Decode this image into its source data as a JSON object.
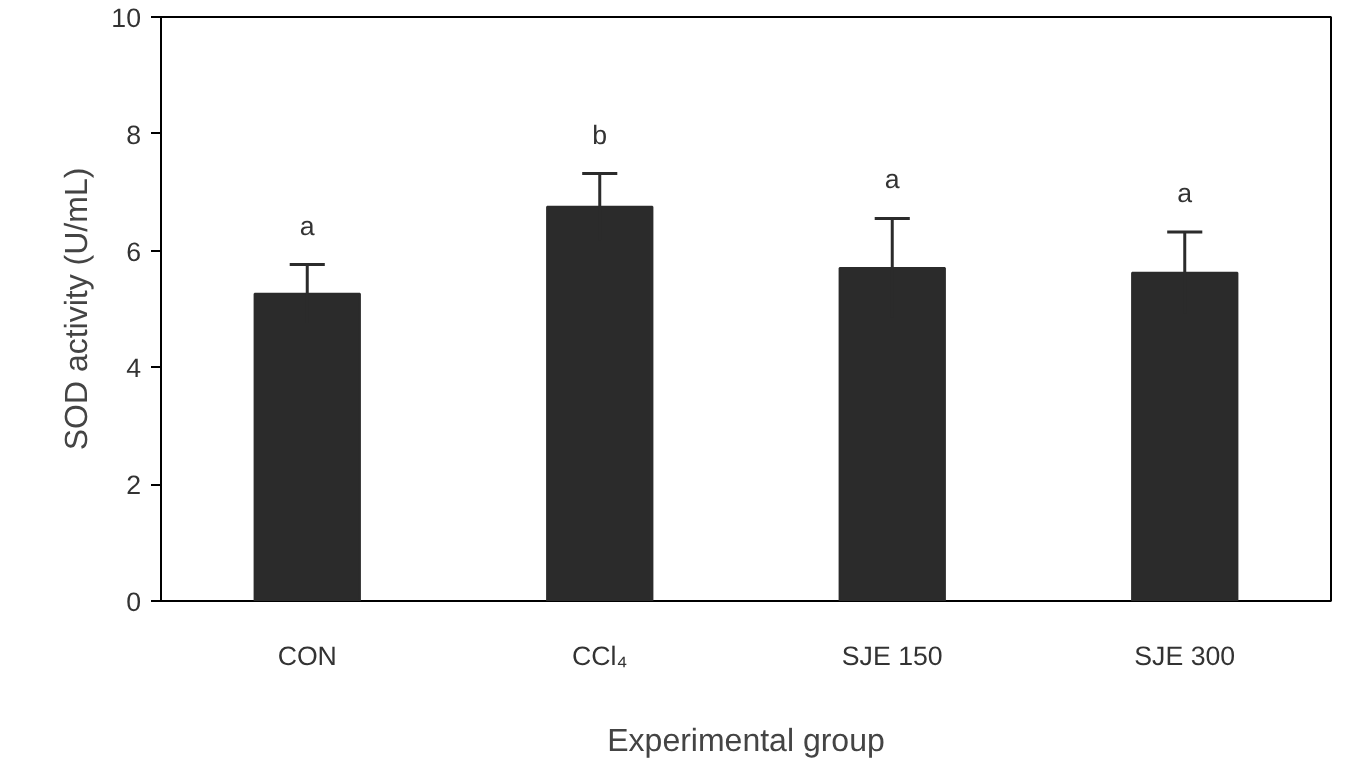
{
  "chart_data": {
    "type": "bar",
    "xlabel": "Experimental group",
    "ylabel": "SOD activity (U/mL)",
    "categories": [
      "CON",
      "CCl₄",
      "SJE 150",
      "SJE 300"
    ],
    "values": [
      5.26,
      6.75,
      5.7,
      5.62
    ],
    "errors": [
      0.5,
      0.57,
      0.85,
      0.7
    ],
    "color": "#2b2b2b",
    "ylim": [
      0,
      10
    ],
    "yticks": [
      0,
      2,
      4,
      6,
      8,
      10
    ],
    "grid": false,
    "annotations": [
      "a",
      "b",
      "a",
      "a"
    ]
  }
}
